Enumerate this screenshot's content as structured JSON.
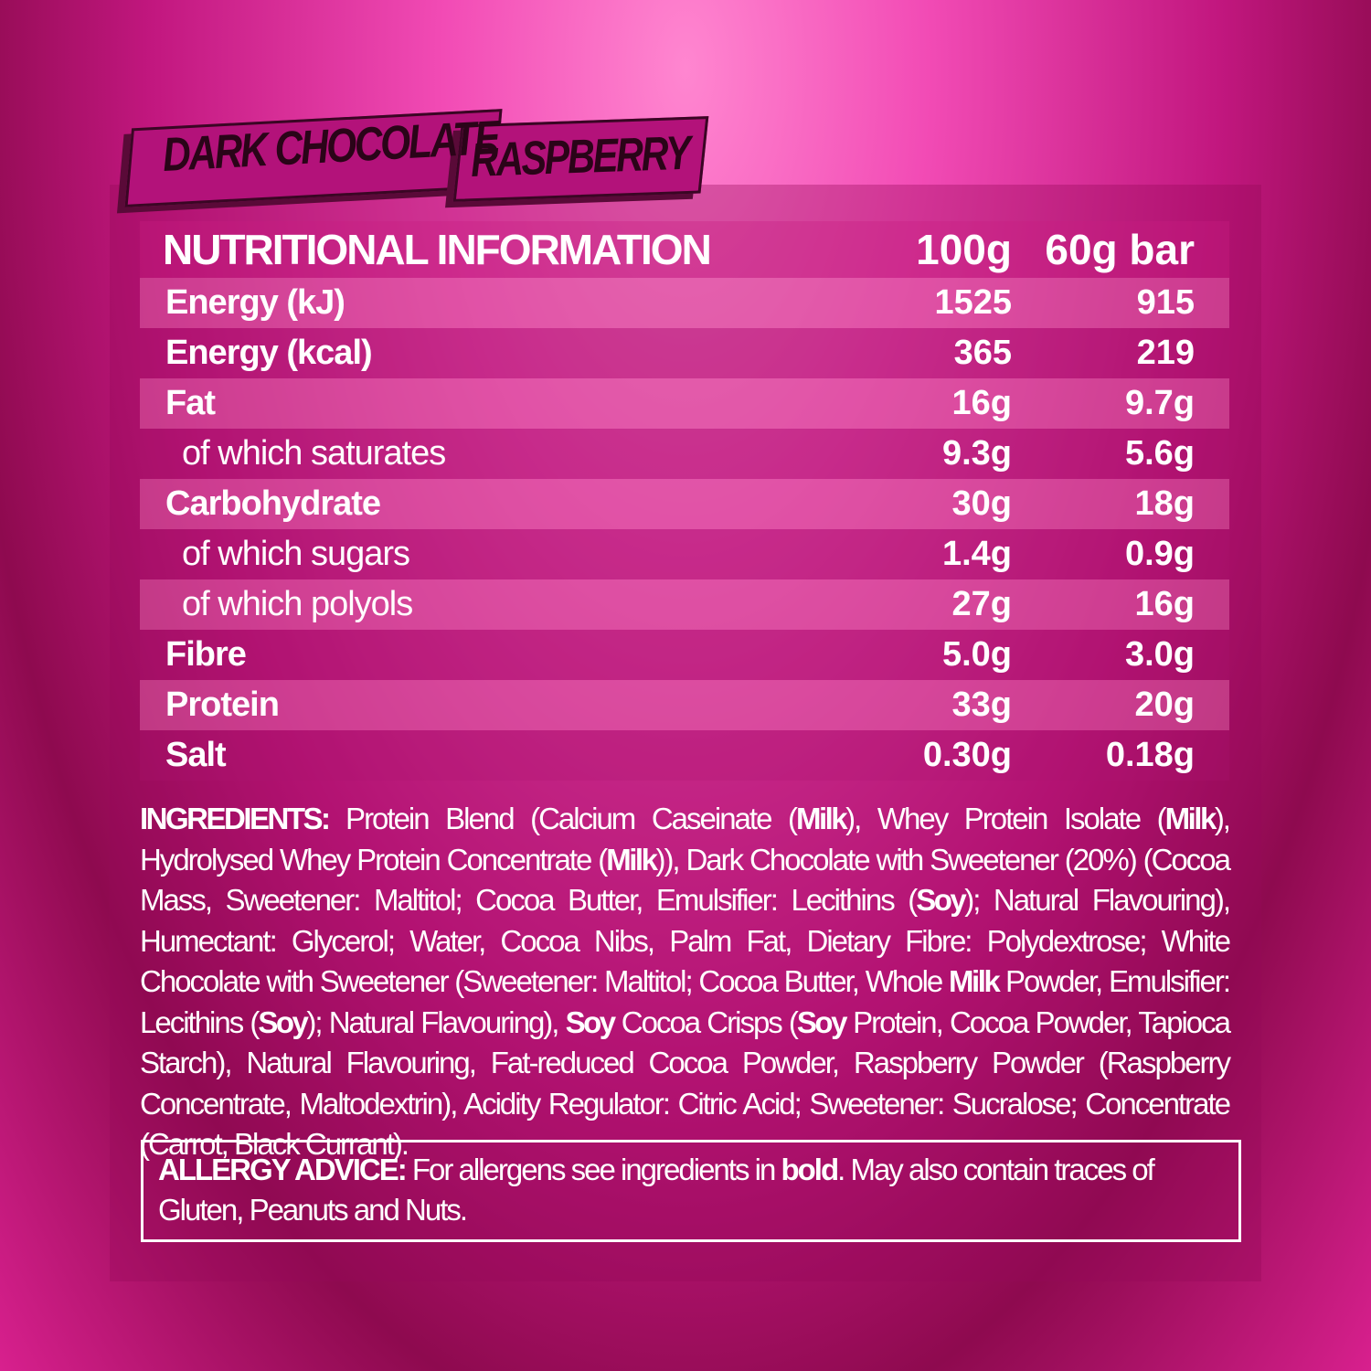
{
  "flavour": {
    "line1": "DARK CHOCOLATE",
    "line2": "RASPBERRY"
  },
  "table": {
    "title": "NUTRITIONAL INFORMATION",
    "col1": "100g",
    "col2": "60g bar",
    "rows": [
      {
        "label": "Energy (kJ)",
        "per100": "1525",
        "perBar": "915",
        "sub": false
      },
      {
        "label": "Energy (kcal)",
        "per100": "365",
        "perBar": "219",
        "sub": false
      },
      {
        "label": "Fat",
        "per100": "16g",
        "perBar": "9.7g",
        "sub": false
      },
      {
        "label": "of which saturates",
        "per100": "9.3g",
        "perBar": "5.6g",
        "sub": true
      },
      {
        "label": "Carbohydrate",
        "per100": "30g",
        "perBar": "18g",
        "sub": false
      },
      {
        "label": "of which sugars",
        "per100": "1.4g",
        "perBar": "0.9g",
        "sub": true
      },
      {
        "label": "of which polyols",
        "per100": "27g",
        "perBar": "16g",
        "sub": true
      },
      {
        "label": "Fibre",
        "per100": "5.0g",
        "perBar": "3.0g",
        "sub": false
      },
      {
        "label": "Protein",
        "per100": "33g",
        "perBar": "20g",
        "sub": false
      },
      {
        "label": "Salt",
        "per100": "0.30g",
        "perBar": "0.18g",
        "sub": false
      }
    ]
  },
  "ingredients": {
    "segments": [
      {
        "text": "INGREDIENTS:",
        "bold": true
      },
      {
        "text": " Protein Blend (Calcium Caseinate (",
        "bold": false
      },
      {
        "text": "Milk",
        "bold": true
      },
      {
        "text": "), Whey Protein Isolate (",
        "bold": false
      },
      {
        "text": "Milk",
        "bold": true
      },
      {
        "text": "), Hydrolysed Whey Protein Concentrate (",
        "bold": false
      },
      {
        "text": "Milk",
        "bold": true
      },
      {
        "text": ")), Dark Chocolate with Sweetener (20%) (Cocoa Mass, Sweetener: Maltitol; Cocoa Butter, Emulsifier: Lecithins (",
        "bold": false
      },
      {
        "text": "Soy",
        "bold": true
      },
      {
        "text": "); Natural Flavouring), Humectant: Glycerol; Water, Cocoa Nibs, Palm Fat, Dietary Fibre: Polydextrose; White Chocolate with Sweetener (Sweetener: Maltitol; Cocoa Butter, Whole ",
        "bold": false
      },
      {
        "text": "Milk",
        "bold": true
      },
      {
        "text": " Powder, Emulsifier: Lecithins (",
        "bold": false
      },
      {
        "text": "Soy",
        "bold": true
      },
      {
        "text": "); Natural Flavouring), ",
        "bold": false
      },
      {
        "text": "Soy",
        "bold": true
      },
      {
        "text": " Cocoa Crisps (",
        "bold": false
      },
      {
        "text": "Soy",
        "bold": true
      },
      {
        "text": " Protein, Cocoa Powder, Tapioca Starch), Natural Flavouring, Fat-reduced Cocoa Powder, Raspberry Powder (Raspberry Concentrate, Maltodextrin), Acidity Regulator: Citric Acid; Sweetener: Sucralose; Concentrate (Carrot, Black Currant).",
        "bold": false
      }
    ]
  },
  "allergy": {
    "segments": [
      {
        "text": "ALLERGY ADVICE:",
        "bold": true
      },
      {
        "text": " For allergens see ingredients in ",
        "bold": false
      },
      {
        "text": "bold",
        "bold": true
      },
      {
        "text": ". May also contain traces of Gluten, Peanuts and Nuts.",
        "bold": false
      }
    ]
  },
  "colors": {
    "background": "#d8208e",
    "stripe_light": "#e066b0",
    "banner": "#b3127a",
    "banner_text": "#2a0418"
  }
}
